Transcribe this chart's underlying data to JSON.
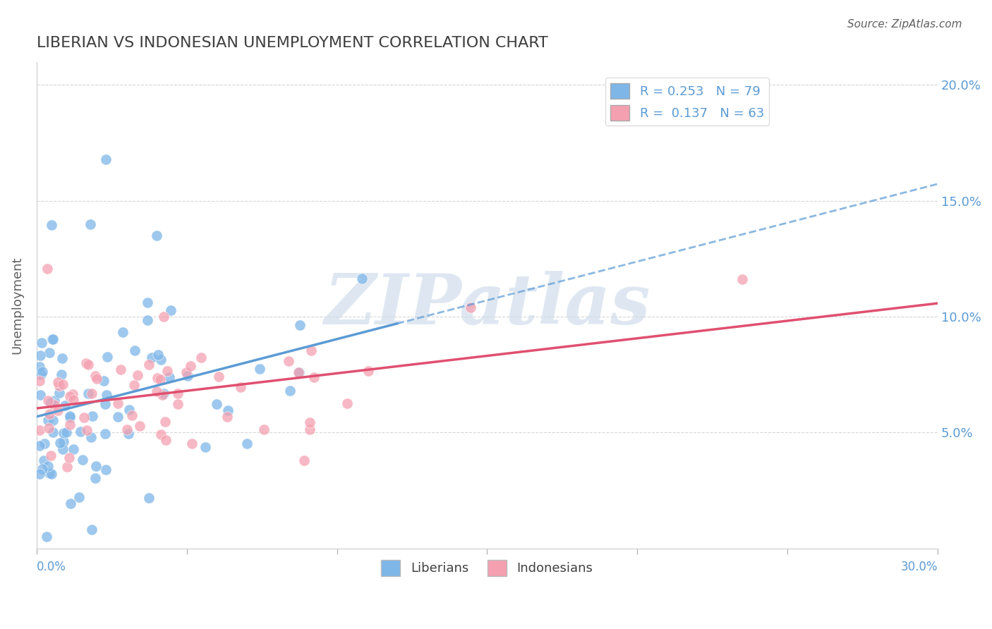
{
  "title": "LIBERIAN VS INDONESIAN UNEMPLOYMENT CORRELATION CHART",
  "source": "Source: ZipAtlas.com",
  "ylabel": "Unemployment",
  "xlim": [
    0.0,
    0.3
  ],
  "ylim": [
    0.0,
    0.21
  ],
  "yticks": [
    0.05,
    0.1,
    0.15,
    0.2
  ],
  "ytick_labels": [
    "5.0%",
    "10.0%",
    "15.0%",
    "20.0%"
  ],
  "liberian_R": 0.253,
  "liberian_N": 79,
  "indonesian_R": 0.137,
  "indonesian_N": 63,
  "color_liberian": "#7EB6E8",
  "color_indonesian": "#F4A0B0",
  "color_liberian_line": "#5B9BD5",
  "color_indonesian_line": "#E05070",
  "color_axis_labels": "#5B9BD5",
  "color_title": "#404040",
  "watermark_text": "ZIPatlas",
  "watermark_color": "#C8D8E8"
}
